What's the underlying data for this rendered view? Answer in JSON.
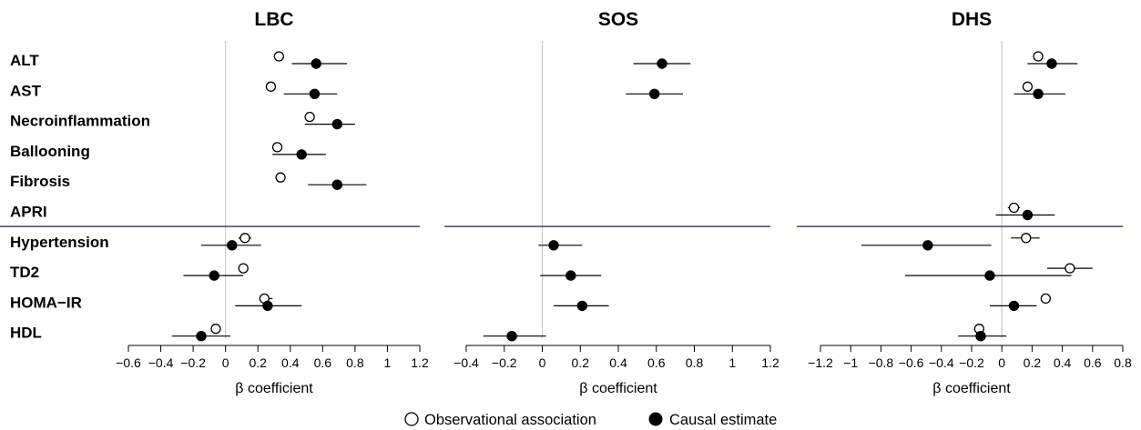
{
  "chart_data": {
    "type": "forest",
    "row_labels": [
      "ALT",
      "AST",
      "Necroinflammation",
      "Ballooning",
      "Fibrosis",
      "APRI",
      "Hypertension",
      "TD2",
      "HOMA−IR",
      "HDL"
    ],
    "colors": {
      "divider": "#1a1a7a",
      "zero_line": "#c8c8c8",
      "ink": "#000000"
    },
    "legend": [
      {
        "name": "Observational association",
        "marker": "open-circle"
      },
      {
        "name": "Causal estimate",
        "marker": "filled-circle"
      }
    ],
    "panels": [
      {
        "title": "LBC",
        "xlabel": "β coefficient",
        "xlim": [
          -0.6,
          1.2
        ],
        "xticks": [
          "−0.6",
          "−0.4",
          "−0.2",
          "0",
          "0.2",
          "0.4",
          "0.6",
          "0.8",
          "1",
          "1.2"
        ],
        "observational": [
          {
            "row": "ALT",
            "est": 0.33,
            "lo": 0.3,
            "hi": 0.36
          },
          {
            "row": "AST",
            "est": 0.28,
            "lo": 0.25,
            "hi": 0.31
          },
          {
            "row": "Necroinflammation",
            "est": 0.52,
            "lo": 0.49,
            "hi": 0.55
          },
          {
            "row": "Ballooning",
            "est": 0.32,
            "lo": 0.29,
            "hi": 0.35
          },
          {
            "row": "Fibrosis",
            "est": 0.34,
            "lo": 0.31,
            "hi": 0.37
          },
          {
            "row": "Hypertension",
            "est": 0.12,
            "lo": 0.08,
            "hi": 0.16
          },
          {
            "row": "TD2",
            "est": 0.11,
            "lo": 0.08,
            "hi": 0.14
          },
          {
            "row": "HOMA−IR",
            "est": 0.24,
            "lo": 0.21,
            "hi": 0.29
          },
          {
            "row": "HDL",
            "est": -0.06,
            "lo": -0.09,
            "hi": -0.03
          }
        ],
        "causal": [
          {
            "row": "ALT",
            "est": 0.56,
            "lo": 0.41,
            "hi": 0.75
          },
          {
            "row": "AST",
            "est": 0.55,
            "lo": 0.36,
            "hi": 0.69
          },
          {
            "row": "Necroinflammation",
            "est": 0.69,
            "lo": 0.49,
            "hi": 0.8
          },
          {
            "row": "Ballooning",
            "est": 0.47,
            "lo": 0.29,
            "hi": 0.62
          },
          {
            "row": "Fibrosis",
            "est": 0.69,
            "lo": 0.51,
            "hi": 0.87
          },
          {
            "row": "Hypertension",
            "est": 0.04,
            "lo": -0.15,
            "hi": 0.22
          },
          {
            "row": "TD2",
            "est": -0.07,
            "lo": -0.26,
            "hi": 0.11
          },
          {
            "row": "HOMA−IR",
            "est": 0.26,
            "lo": 0.06,
            "hi": 0.47
          },
          {
            "row": "HDL",
            "est": -0.15,
            "lo": -0.33,
            "hi": 0.03
          }
        ]
      },
      {
        "title": "SOS",
        "xlabel": "β coefficient",
        "xlim": [
          -0.4,
          1.2
        ],
        "xticks": [
          "−0.4",
          "−0.2",
          "0",
          "0.2",
          "0.4",
          "0.6",
          "0.8",
          "1",
          "1.2"
        ],
        "observational": [],
        "causal": [
          {
            "row": "ALT",
            "est": 0.63,
            "lo": 0.48,
            "hi": 0.78
          },
          {
            "row": "AST",
            "est": 0.59,
            "lo": 0.44,
            "hi": 0.74
          },
          {
            "row": "Hypertension",
            "est": 0.06,
            "lo": -0.02,
            "hi": 0.21
          },
          {
            "row": "TD2",
            "est": 0.15,
            "lo": -0.01,
            "hi": 0.31
          },
          {
            "row": "HOMA−IR",
            "est": 0.21,
            "lo": 0.06,
            "hi": 0.35
          },
          {
            "row": "HDL",
            "est": -0.16,
            "lo": -0.31,
            "hi": 0.02
          }
        ]
      },
      {
        "title": "DHS",
        "xlabel": "β coefficient",
        "xlim": [
          -1.2,
          0.8
        ],
        "xticks": [
          "−1.2",
          "−1",
          "−0.8",
          "−0.6",
          "−0.4",
          "−0.2",
          "0",
          "0.2",
          "0.4",
          "0.6",
          "0.8"
        ],
        "observational": [
          {
            "row": "ALT",
            "est": 0.24,
            "lo": 0.21,
            "hi": 0.27
          },
          {
            "row": "AST",
            "est": 0.17,
            "lo": 0.14,
            "hi": 0.2
          },
          {
            "row": "APRI",
            "est": 0.08,
            "lo": 0.04,
            "hi": 0.12
          },
          {
            "row": "Hypertension",
            "est": 0.16,
            "lo": 0.06,
            "hi": 0.25
          },
          {
            "row": "TD2",
            "est": 0.45,
            "lo": 0.3,
            "hi": 0.6
          },
          {
            "row": "HOMA−IR",
            "est": 0.29,
            "lo": 0.26,
            "hi": 0.32
          },
          {
            "row": "HDL",
            "est": -0.15,
            "lo": -0.18,
            "hi": -0.12
          }
        ],
        "causal": [
          {
            "row": "ALT",
            "est": 0.33,
            "lo": 0.17,
            "hi": 0.5
          },
          {
            "row": "AST",
            "est": 0.24,
            "lo": 0.08,
            "hi": 0.42
          },
          {
            "row": "APRI",
            "est": 0.17,
            "lo": -0.04,
            "hi": 0.35
          },
          {
            "row": "Hypertension",
            "est": -0.49,
            "lo": -0.93,
            "hi": -0.07
          },
          {
            "row": "TD2",
            "est": -0.08,
            "lo": -0.64,
            "hi": 0.46
          },
          {
            "row": "HOMA−IR",
            "est": 0.08,
            "lo": -0.08,
            "hi": 0.23
          },
          {
            "row": "HDL",
            "est": -0.14,
            "lo": -0.29,
            "hi": 0.03
          }
        ]
      }
    ]
  }
}
